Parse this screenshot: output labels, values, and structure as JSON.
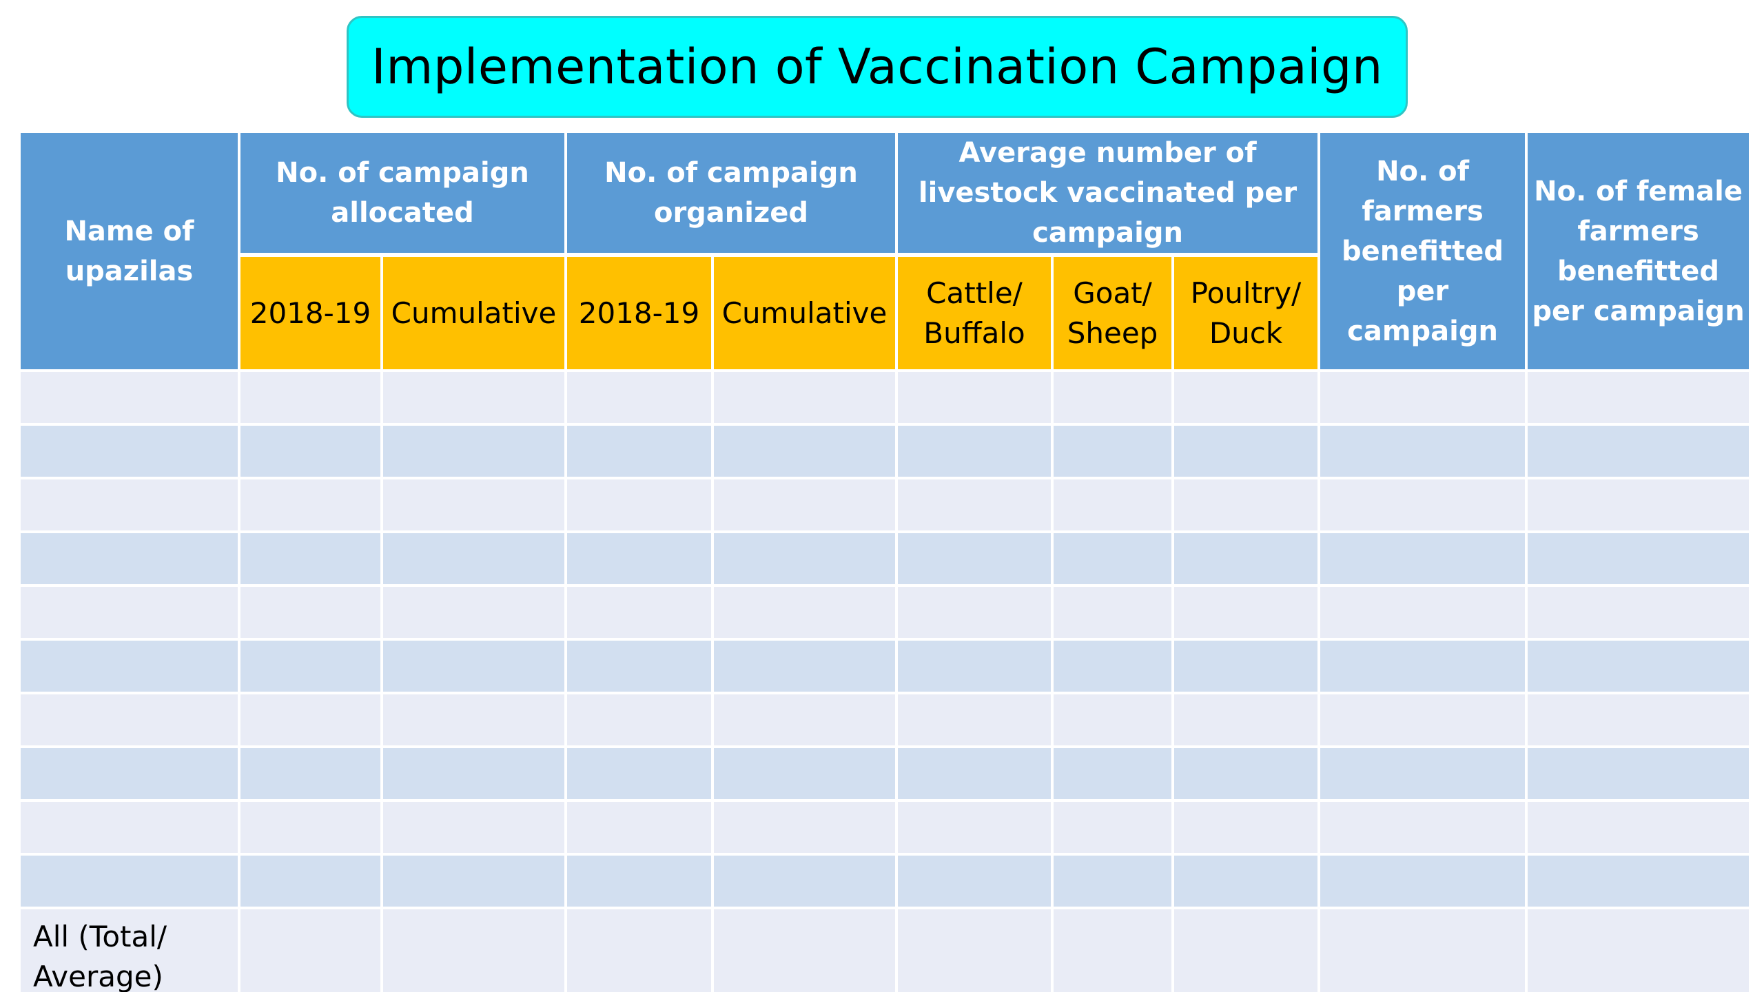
{
  "title": "Implementation of Vaccination Campaign",
  "header": {
    "name_of_upazilas": "Name of upazilas",
    "campaign_allocated": "No. of campaign allocated",
    "campaign_organized": "No.  of campaign organized",
    "avg_livestock": "Average number of livestock vaccinated per campaign",
    "farmers_benefitted": "No. of farmers benefitted per campaign",
    "female_farmers_benefitted": "No. of female farmers benefitted per campaign"
  },
  "subheader": {
    "allocated_year": "2018-19",
    "allocated_cumulative": "Cumulative",
    "organized_year": "2018-19",
    "organized_cumulative": "Cumulative",
    "cattle_buffalo": "Cattle/ Buffalo",
    "goat_sheep": "Goat/ Sheep",
    "poultry_duck": "Poultry/ Duck"
  },
  "rows": [
    {
      "upazila": "",
      "alloc_year": "",
      "alloc_cum": "",
      "org_year": "",
      "org_cum": "",
      "cattle": "",
      "goat": "",
      "poultry": "",
      "farmers": "",
      "female": ""
    },
    {
      "upazila": "",
      "alloc_year": "",
      "alloc_cum": "",
      "org_year": "",
      "org_cum": "",
      "cattle": "",
      "goat": "",
      "poultry": "",
      "farmers": "",
      "female": ""
    },
    {
      "upazila": "",
      "alloc_year": "",
      "alloc_cum": "",
      "org_year": "",
      "org_cum": "",
      "cattle": "",
      "goat": "",
      "poultry": "",
      "farmers": "",
      "female": ""
    },
    {
      "upazila": "",
      "alloc_year": "",
      "alloc_cum": "",
      "org_year": "",
      "org_cum": "",
      "cattle": "",
      "goat": "",
      "poultry": "",
      "farmers": "",
      "female": ""
    },
    {
      "upazila": "",
      "alloc_year": "",
      "alloc_cum": "",
      "org_year": "",
      "org_cum": "",
      "cattle": "",
      "goat": "",
      "poultry": "",
      "farmers": "",
      "female": ""
    },
    {
      "upazila": "",
      "alloc_year": "",
      "alloc_cum": "",
      "org_year": "",
      "org_cum": "",
      "cattle": "",
      "goat": "",
      "poultry": "",
      "farmers": "",
      "female": ""
    },
    {
      "upazila": "",
      "alloc_year": "",
      "alloc_cum": "",
      "org_year": "",
      "org_cum": "",
      "cattle": "",
      "goat": "",
      "poultry": "",
      "farmers": "",
      "female": ""
    },
    {
      "upazila": "",
      "alloc_year": "",
      "alloc_cum": "",
      "org_year": "",
      "org_cum": "",
      "cattle": "",
      "goat": "",
      "poultry": "",
      "farmers": "",
      "female": ""
    },
    {
      "upazila": "",
      "alloc_year": "",
      "alloc_cum": "",
      "org_year": "",
      "org_cum": "",
      "cattle": "",
      "goat": "",
      "poultry": "",
      "farmers": "",
      "female": ""
    },
    {
      "upazila": "",
      "alloc_year": "",
      "alloc_cum": "",
      "org_year": "",
      "org_cum": "",
      "cattle": "",
      "goat": "",
      "poultry": "",
      "farmers": "",
      "female": ""
    }
  ],
  "total_row": {
    "label": "All (Total/ Average)"
  },
  "colors": {
    "title_background": "#00ffff",
    "header_blue": "#5b9bd5",
    "subheader_orange": "#ffc000",
    "row_light": "#e9ecf6",
    "row_dark": "#d2dff0"
  }
}
